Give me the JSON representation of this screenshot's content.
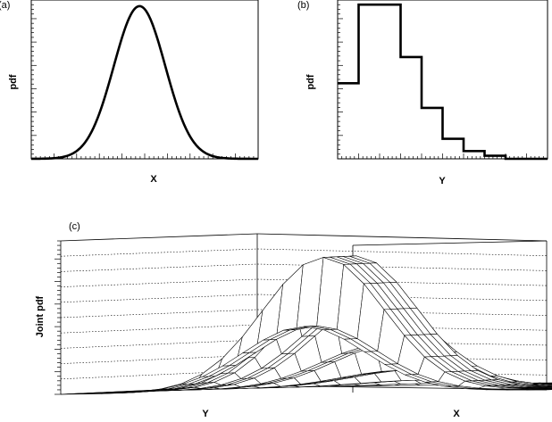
{
  "chart_data": [
    {
      "panel": "(a)",
      "type": "line",
      "xlabel": "X",
      "ylabel": "pdf",
      "description_free": true,
      "x": [
        -4.0,
        -3.5,
        -3.0,
        -2.5,
        -2.0,
        -1.5,
        -1.0,
        -0.5,
        0.0,
        0.5,
        1.0,
        1.5,
        2.0,
        2.5,
        3.0,
        3.5,
        4.0
      ],
      "y": [
        0.0003,
        0.0022,
        0.011,
        0.044,
        0.135,
        0.325,
        0.607,
        0.882,
        1.0,
        0.882,
        0.607,
        0.325,
        0.135,
        0.044,
        0.011,
        0.0022,
        0.0003
      ],
      "xlim": [
        -4.2,
        4.6
      ],
      "ylim": [
        0,
        1.04
      ]
    },
    {
      "panel": "(b)",
      "type": "bar",
      "style": "step",
      "xlabel": "Y",
      "ylabel": "pdf",
      "bin_edges": [
        0,
        1,
        2,
        3,
        4,
        5,
        6,
        7,
        8,
        9,
        10
      ],
      "values": [
        0.49,
        1.0,
        1.0,
        0.66,
        0.33,
        0.13,
        0.05,
        0.02,
        0.0,
        0.0
      ],
      "ylim": [
        0,
        1.03
      ]
    },
    {
      "panel": "(c)",
      "type": "area",
      "style": "3d-surface",
      "xlabel": "X",
      "ylabel": "Y",
      "zlabel": "Joint pdf"
    }
  ],
  "panels": {
    "a": {
      "tag": "(a)",
      "xlabel": "X",
      "ylabel": "pdf"
    },
    "b": {
      "tag": "(b)",
      "xlabel": "Y",
      "ylabel": "pdf"
    },
    "c": {
      "tag": "(c)",
      "xlabel": "X",
      "ylabel": "Y",
      "zlabel": "Joint pdf"
    }
  }
}
